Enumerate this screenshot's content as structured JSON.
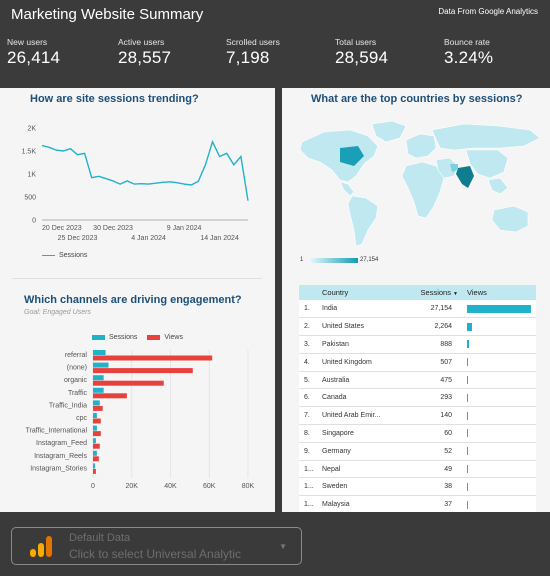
{
  "header": {
    "title": "Marketing Website Summary",
    "source": "Data From Google Analytics",
    "kpis": [
      {
        "label": "New users",
        "value": "26,414"
      },
      {
        "label": "Active users",
        "value": "28,557"
      },
      {
        "label": "Scrolled users",
        "value": "7,198"
      },
      {
        "label": "Total users",
        "value": "28,594"
      },
      {
        "label": "Bounce rate",
        "value": "3.24%"
      }
    ]
  },
  "sessions_panel": {
    "title": "How are site sessions trending?",
    "legend": "Sessions"
  },
  "map_panel": {
    "title": "What are the top countries by sessions?",
    "scale_min": "1",
    "scale_max": "27,154"
  },
  "channels_panel": {
    "title": "Which channels are driving engagement?",
    "subtitle": "Goal: Engaged Users"
  },
  "country_table": {
    "headers": {
      "country": "Country",
      "sessions": "Sessions",
      "views": "Views"
    },
    "sort_icon": "sort-desc-icon",
    "rows": [
      {
        "rank": "1.",
        "country": "India",
        "sessions": "27,154",
        "views": 27154
      },
      {
        "rank": "2.",
        "country": "United States",
        "sessions": "2,264",
        "views": 2264
      },
      {
        "rank": "3.",
        "country": "Pakistan",
        "sessions": "888",
        "views": 888
      },
      {
        "rank": "4.",
        "country": "United Kingdom",
        "sessions": "507",
        "views": 507
      },
      {
        "rank": "5.",
        "country": "Australia",
        "sessions": "475",
        "views": 475
      },
      {
        "rank": "6.",
        "country": "Canada",
        "sessions": "293",
        "views": 293
      },
      {
        "rank": "7.",
        "country": "United Arab Emir...",
        "sessions": "140",
        "views": 140
      },
      {
        "rank": "8.",
        "country": "Singapore",
        "sessions": "60",
        "views": 60
      },
      {
        "rank": "9.",
        "country": "Germany",
        "sessions": "52",
        "views": 52
      },
      {
        "rank": "1...",
        "country": "Nepal",
        "sessions": "49",
        "views": 49
      },
      {
        "rank": "1...",
        "country": "Sweden",
        "sessions": "38",
        "views": 38
      },
      {
        "rank": "1...",
        "country": "Malaysia",
        "sessions": "37",
        "views": 37
      }
    ]
  },
  "footer": {
    "data_source_label": "Default Data",
    "data_source_hint": "Click to select Universal Analytic",
    "icon": "analytics-logo-icon"
  },
  "colors": {
    "teal": "#1fb2c9",
    "red": "#e8413c",
    "title_blue": "#1d4f78"
  },
  "chart_data": [
    {
      "type": "line",
      "x": [
        "20 Dec 2023",
        "21 Dec 2023",
        "22 Dec 2023",
        "23 Dec 2023",
        "24 Dec 2023",
        "25 Dec 2023",
        "26 Dec 2023",
        "27 Dec 2023",
        "28 Dec 2023",
        "29 Dec 2023",
        "30 Dec 2023",
        "31 Dec 2023",
        "1 Jan 2024",
        "2 Jan 2024",
        "3 Jan 2024",
        "4 Jan 2024",
        "5 Jan 2024",
        "6 Jan 2024",
        "7 Jan 2024",
        "8 Jan 2024",
        "9 Jan 2024",
        "10 Jan 2024",
        "11 Jan 2024",
        "12 Jan 2024",
        "13 Jan 2024",
        "14 Jan 2024",
        "15 Jan 2024",
        "16 Jan 2024",
        "17 Jan 2024",
        "18 Jan 2024"
      ],
      "xticks_upper": [
        "20 Dec 2023",
        "30 Dec 2023",
        "9 Jan 2024"
      ],
      "xticks_lower": [
        "25 Dec 2023",
        "4 Jan 2024",
        "14 Jan 2024"
      ],
      "series": [
        {
          "name": "Sessions",
          "values": [
            1620,
            1580,
            1520,
            1500,
            1550,
            1420,
            1450,
            920,
            950,
            900,
            850,
            780,
            850,
            780,
            790,
            780,
            800,
            820,
            830,
            810,
            780,
            760,
            840,
            1200,
            1700,
            1380,
            1450,
            1200,
            1380,
            420
          ]
        }
      ],
      "ylim": [
        0,
        2000
      ],
      "yticks": [
        "0",
        "500",
        "1K",
        "1.5K",
        "2K"
      ],
      "legend": "bottom"
    },
    {
      "type": "bar",
      "orientation": "horizontal",
      "categories": [
        "referral",
        "(none)",
        "organic",
        "Traffic",
        "Traffic_India",
        "cpc",
        "Traffic_International",
        "Instagram_Feed",
        "Instagram_Reels",
        "Instagram_Stories"
      ],
      "series": [
        {
          "name": "Sessions",
          "values": [
            6500,
            8000,
            5500,
            5500,
            3500,
            2000,
            2000,
            1500,
            2000,
            1000
          ]
        },
        {
          "name": "Views",
          "values": [
            61500,
            51500,
            36500,
            17500,
            5000,
            4000,
            4000,
            3500,
            3000,
            1500
          ]
        }
      ],
      "xlim": [
        0,
        80000
      ],
      "xticks": [
        "0",
        "20K",
        "40K",
        "60K",
        "80K"
      ],
      "legend": "top"
    }
  ]
}
